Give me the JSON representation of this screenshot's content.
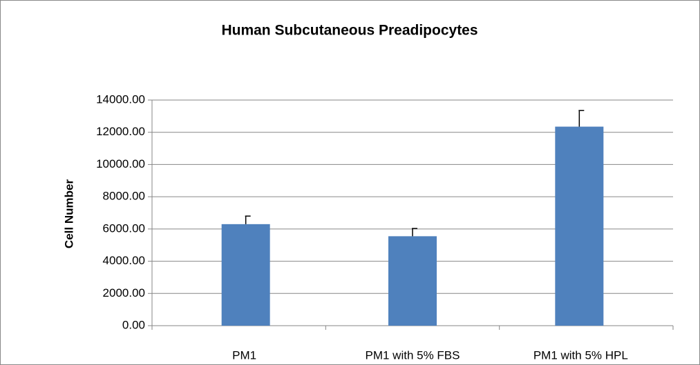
{
  "chart_data": {
    "type": "bar",
    "title": "Human Subcutaneous Preadipocytes",
    "y_label": "Cell Number",
    "categories": [
      "PM1",
      "PM1 with 5% FBS",
      "PM1 with 5% HPL"
    ],
    "values": [
      6300,
      5550,
      12350
    ],
    "errors": [
      500,
      480,
      1000
    ],
    "color": "#4f81bd",
    "ylim": [
      0,
      14000
    ],
    "yticks": [
      {
        "value": 0,
        "label": "0.00"
      },
      {
        "value": 2000,
        "label": "2000.00"
      },
      {
        "value": 4000,
        "label": "4000.00"
      },
      {
        "value": 6000,
        "label": "6000.00"
      },
      {
        "value": 8000,
        "label": "8000.00"
      },
      {
        "value": 10000,
        "label": "10000.00"
      },
      {
        "value": 12000,
        "label": "12000.00"
      },
      {
        "value": 14000,
        "label": "14000.00"
      }
    ],
    "grid": true
  }
}
